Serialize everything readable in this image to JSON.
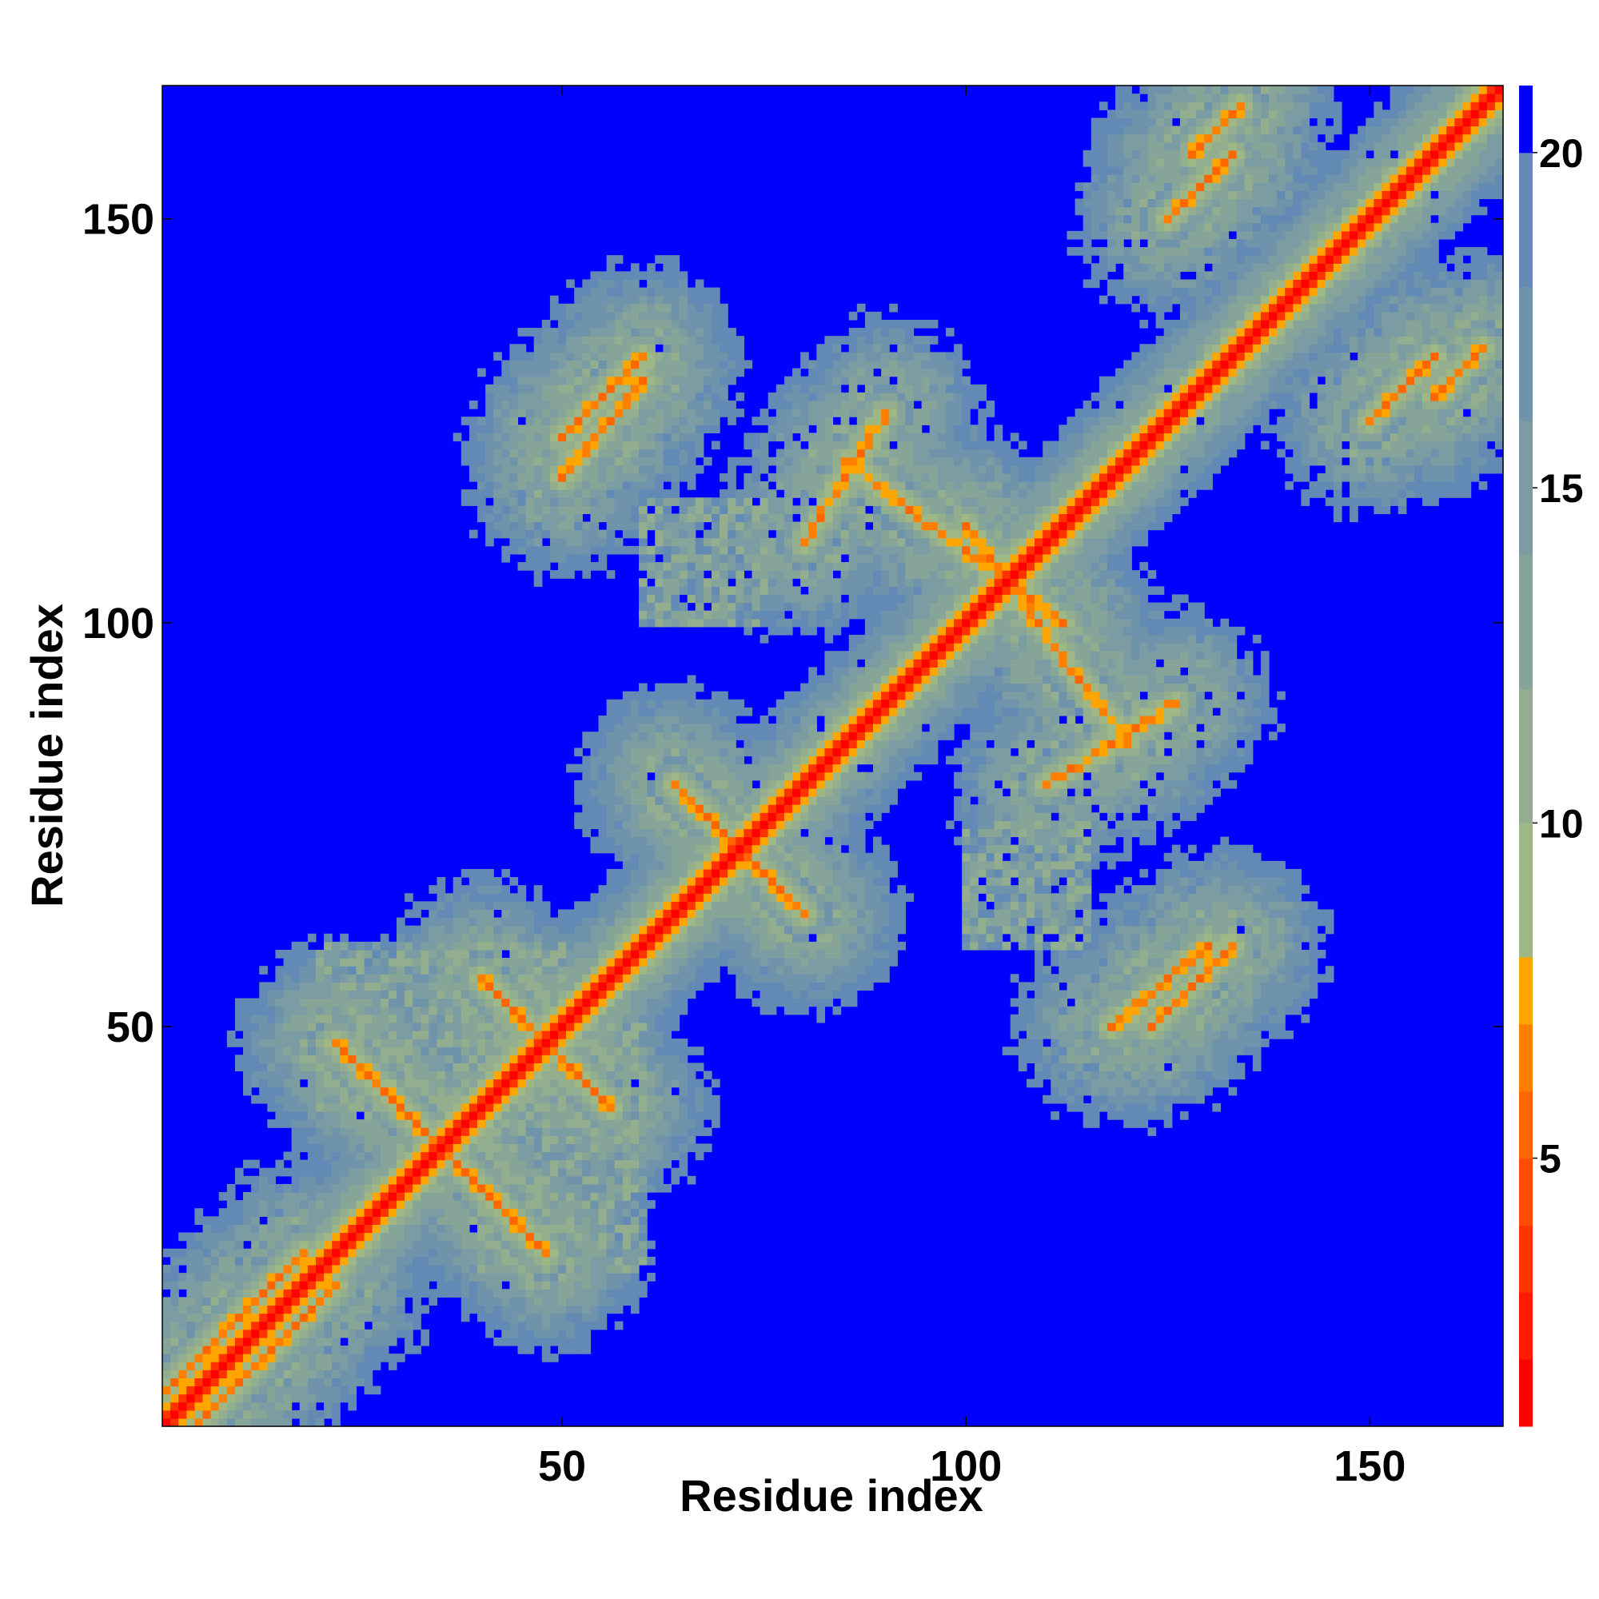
{
  "chart_data": {
    "type": "heatmap",
    "title": "",
    "xlabel": "Residue index",
    "ylabel": "Residue index",
    "n_residues": 166,
    "xlim": [
      1,
      166
    ],
    "ylim": [
      1,
      166
    ],
    "x_ticks": [
      50,
      100,
      150
    ],
    "y_ticks": [
      50,
      100,
      150
    ],
    "colorbar": {
      "range": [
        1,
        21
      ],
      "ticks": [
        5,
        10,
        15,
        20
      ],
      "levels": [
        {
          "max": 2,
          "color": "#ff0000"
        },
        {
          "max": 3,
          "color": "#ff1a00"
        },
        {
          "max": 4,
          "color": "#ff3300"
        },
        {
          "max": 5,
          "color": "#ff4d00"
        },
        {
          "max": 6,
          "color": "#ff6600"
        },
        {
          "max": 7,
          "color": "#ff8000"
        },
        {
          "max": 8,
          "color": "#ffa500"
        },
        {
          "max": 10,
          "color": "#9fb784"
        },
        {
          "max": 12,
          "color": "#93ae8e"
        },
        {
          "max": 14,
          "color": "#86a598"
        },
        {
          "max": 16,
          "color": "#7a9ca2"
        },
        {
          "max": 18,
          "color": "#6e93ab"
        },
        {
          "max": 20,
          "color": "#628ab5"
        },
        {
          "max": 21,
          "color": "#0000ff"
        }
      ]
    },
    "contacts": [
      {
        "i0": 5,
        "j0": 1,
        "i1": 22,
        "j1": 18,
        "kind": "diagonal-band"
      },
      {
        "i0": 22,
        "j0": 48,
        "i1": 48,
        "j1": 22,
        "kind": "antiparallel"
      },
      {
        "i0": 40,
        "j0": 56,
        "i1": 56,
        "j1": 40,
        "kind": "antiparallel"
      },
      {
        "i0": 64,
        "j0": 80,
        "i1": 80,
        "j1": 64,
        "kind": "antiparallel"
      },
      {
        "i0": 50,
        "j0": 118,
        "i1": 60,
        "j1": 130,
        "kind": "parallel"
      },
      {
        "i0": 123,
        "j0": 50,
        "i1": 133,
        "j1": 60,
        "kind": "parallel"
      },
      {
        "i0": 128,
        "j0": 158,
        "i1": 134,
        "j1": 164,
        "kind": "parallel"
      },
      {
        "i0": 150,
        "j0": 125,
        "i1": 158,
        "j1": 133,
        "kind": "antiparallel"
      },
      {
        "i0": 80,
        "j0": 110,
        "i1": 90,
        "j1": 126,
        "kind": "antiparallel"
      },
      {
        "i0": 85,
        "j0": 120,
        "i1": 112,
        "j1": 100,
        "kind": "antiparallel"
      },
      {
        "i0": 20,
        "j0": 40,
        "i1": 50,
        "j1": 60,
        "kind": "scatter"
      },
      {
        "i0": 60,
        "j0": 100,
        "i1": 75,
        "j1": 115,
        "kind": "scatter"
      }
    ]
  }
}
